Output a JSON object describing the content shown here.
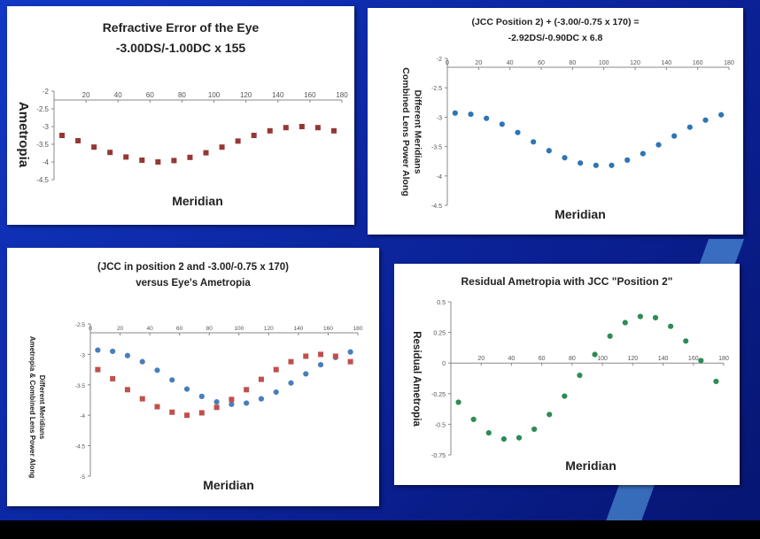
{
  "chart_data": [
    {
      "type": "scatter",
      "title": "Refractive Error of the Eye",
      "subtitle": "-3.00DS/-1.00DC x 155",
      "xlabel": "Meridian",
      "ylabel": "Ametropia",
      "xlim": [
        0,
        180
      ],
      "ylim": [
        -4.5,
        -2
      ],
      "xticks": [
        "20",
        "40",
        "60",
        "80",
        "100",
        "120",
        "140",
        "160",
        "180"
      ],
      "xtick_values": [
        20,
        40,
        60,
        80,
        100,
        120,
        140,
        160,
        180
      ],
      "yticks": [
        "-2",
        "-2.5",
        "-3",
        "-3.5",
        "-4",
        "-4.5"
      ],
      "ytick_values": [
        -2,
        -2.5,
        -3,
        -3.5,
        -4,
        -4.5
      ],
      "series": [
        {
          "name": "Eye",
          "color": "#953735",
          "marker": "square",
          "x": [
            5,
            15,
            25,
            35,
            45,
            55,
            65,
            75,
            85,
            95,
            105,
            115,
            125,
            135,
            145,
            155,
            165,
            175
          ],
          "y": [
            -3.25,
            -3.4,
            -3.58,
            -3.73,
            -3.86,
            -3.95,
            -4.0,
            -3.96,
            -3.87,
            -3.74,
            -3.58,
            -3.41,
            -3.25,
            -3.12,
            -3.03,
            -3.0,
            -3.03,
            -3.12
          ]
        }
      ]
    },
    {
      "type": "scatter",
      "title": "(JCC Position 2) + (-3.00/-0.75 x 170) =",
      "subtitle": "-2.92DS/-0.90DC x 6.8",
      "xlabel": "Meridian",
      "ylabel": "Combined Lens Power Along",
      "ylabel2": "Different Meridians",
      "xlim": [
        0,
        180
      ],
      "ylim": [
        -4.5,
        -2
      ],
      "xticks": [
        "0",
        "20",
        "40",
        "60",
        "80",
        "100",
        "120",
        "140",
        "160",
        "180"
      ],
      "xtick_values": [
        0,
        20,
        40,
        60,
        80,
        100,
        120,
        140,
        160,
        180
      ],
      "yticks": [
        "-2",
        "-2.5",
        "-3",
        "-3.5",
        "-4",
        "-4.5"
      ],
      "ytick_values": [
        -2,
        -2.5,
        -3,
        -3.5,
        -4,
        -4.5
      ],
      "series": [
        {
          "name": "Combined Lens",
          "color": "#2e75b6",
          "marker": "circle",
          "x": [
            5,
            15,
            25,
            35,
            45,
            55,
            65,
            75,
            85,
            95,
            105,
            115,
            125,
            135,
            145,
            155,
            165,
            175
          ],
          "y": [
            -2.93,
            -2.95,
            -3.02,
            -3.12,
            -3.26,
            -3.42,
            -3.57,
            -3.69,
            -3.78,
            -3.82,
            -3.82,
            -3.73,
            -3.62,
            -3.47,
            -3.32,
            -3.17,
            -3.05,
            -2.96
          ]
        }
      ]
    },
    {
      "type": "scatter",
      "title": "(JCC in position 2 and -3.00/-0.75 x 170)",
      "subtitle": "versus Eye's Ametropia",
      "xlabel": "Meridian",
      "ylabel": "Ametropia & Combined Lens Power Along",
      "ylabel2": "Different Meridians",
      "xlim": [
        0,
        180
      ],
      "ylim": [
        -5,
        -2.5
      ],
      "xticks": [
        "0",
        "20",
        "40",
        "60",
        "80",
        "100",
        "120",
        "140",
        "160",
        "180"
      ],
      "xtick_values": [
        0,
        20,
        40,
        60,
        80,
        100,
        120,
        140,
        160,
        180
      ],
      "yticks": [
        "-2.5",
        "-3",
        "-3.5",
        "-4",
        "-4.5",
        "-5"
      ],
      "ytick_values": [
        -2.5,
        -3,
        -3.5,
        -4,
        -4.5,
        -5
      ],
      "series": [
        {
          "name": "Combined Lens",
          "color": "#4a7ebb",
          "marker": "circle",
          "x": [
            5,
            15,
            25,
            35,
            45,
            55,
            65,
            75,
            85,
            95,
            105,
            115,
            125,
            135,
            145,
            155,
            165,
            175
          ],
          "y": [
            -2.93,
            -2.95,
            -3.02,
            -3.12,
            -3.26,
            -3.42,
            -3.57,
            -3.69,
            -3.78,
            -3.82,
            -3.8,
            -3.73,
            -3.62,
            -3.47,
            -3.32,
            -3.17,
            -3.05,
            -2.96
          ]
        },
        {
          "name": "Eye",
          "color": "#c0504d",
          "marker": "square",
          "x": [
            5,
            15,
            25,
            35,
            45,
            55,
            65,
            75,
            85,
            95,
            105,
            115,
            125,
            135,
            145,
            155,
            165,
            175
          ],
          "y": [
            -3.25,
            -3.4,
            -3.58,
            -3.73,
            -3.86,
            -3.95,
            -4.0,
            -3.96,
            -3.87,
            -3.74,
            -3.58,
            -3.41,
            -3.25,
            -3.12,
            -3.03,
            -3.0,
            -3.03,
            -3.12
          ]
        }
      ]
    },
    {
      "type": "scatter",
      "title": "Residual Ametropia with JCC \"Position 2\"",
      "subtitle": "",
      "xlabel": "Meridian",
      "ylabel": "Residual Ametropia",
      "xlim": [
        0,
        180
      ],
      "ylim": [
        -0.75,
        0.5
      ],
      "xticks": [
        "20",
        "40",
        "60",
        "80",
        "100",
        "120",
        "140",
        "160",
        "180"
      ],
      "xtick_values": [
        20,
        40,
        60,
        80,
        100,
        120,
        140,
        160,
        180
      ],
      "yticks": [
        "0.5",
        "0.25",
        "0",
        "-0.25",
        "-0.5",
        "-0.75"
      ],
      "ytick_values": [
        0.5,
        0.25,
        0,
        -0.25,
        -0.5,
        -0.75
      ],
      "series": [
        {
          "name": "Residual",
          "color": "#2e8b57",
          "marker": "circle",
          "x": [
            5,
            15,
            25,
            35,
            45,
            55,
            65,
            75,
            85,
            95,
            105,
            115,
            125,
            135,
            145,
            155,
            165,
            175
          ],
          "y": [
            -0.32,
            -0.46,
            -0.57,
            -0.62,
            -0.61,
            -0.54,
            -0.42,
            -0.27,
            -0.1,
            0.07,
            0.22,
            0.33,
            0.38,
            0.37,
            0.3,
            0.18,
            0.02,
            -0.15
          ]
        }
      ]
    }
  ]
}
